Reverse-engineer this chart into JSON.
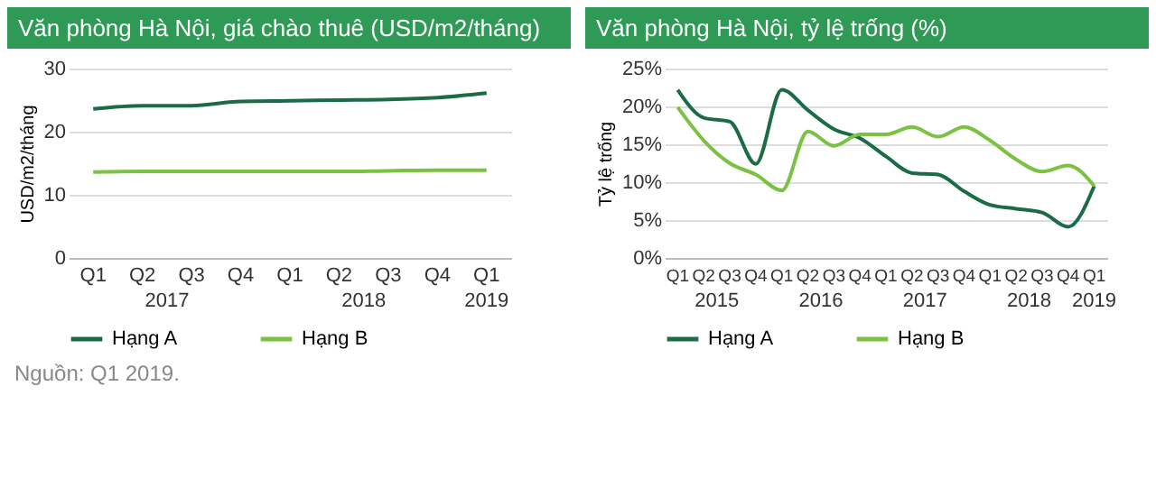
{
  "chart_data": [
    {
      "type": "line",
      "title": "Văn phòng Hà Nội, giá chào thuê (USD/m2/tháng)",
      "ylabel": "USD/m2/tháng",
      "categories": [
        "Q1",
        "Q2",
        "Q3",
        "Q4",
        "Q1",
        "Q2",
        "Q3",
        "Q4",
        "Q1"
      ],
      "series": [
        {
          "name": "Hạng A",
          "color": "#1b6b47",
          "values": [
            23.6,
            24.1,
            24.1,
            24.8,
            24.9,
            25.0,
            25.1,
            25.4,
            26.1
          ]
        },
        {
          "name": "Hạng B",
          "color": "#7cc242",
          "values": [
            13.6,
            13.7,
            13.7,
            13.7,
            13.7,
            13.7,
            13.8,
            13.9,
            13.9
          ]
        }
      ],
      "ylim": [
        0,
        30
      ],
      "yticks": [
        0,
        10,
        20,
        30
      ],
      "grid": "y",
      "legend": "bottom",
      "annotations": [
        "2017",
        "2018",
        "2019",
        "Nguồn: Q1 2019."
      ]
    },
    {
      "type": "line",
      "title": "Văn phòng Hà Nội, tỷ lệ trống (%)",
      "ylabel": "Tỷ lệ trống",
      "categories": [
        "Q1",
        "Q2",
        "Q3",
        "Q4",
        "Q1",
        "Q2",
        "Q3",
        "Q4",
        "Q1",
        "Q2",
        "Q3",
        "Q4",
        "Q1",
        "Q2",
        "Q3",
        "Q4",
        "Q1"
      ],
      "series": [
        {
          "name": "Hạng A",
          "color": "#1b6b47",
          "values": [
            22.2,
            18.5,
            18,
            12.4,
            22.2,
            19.5,
            17,
            15.8,
            13.4,
            11.2,
            11,
            8.8,
            7,
            6.5,
            6,
            4.1,
            9.5
          ]
        },
        {
          "name": "Hạng B",
          "color": "#7cc242",
          "values": [
            19.9,
            15.5,
            12.5,
            11,
            8.9,
            16.7,
            14.8,
            16.3,
            16.3,
            17.3,
            16,
            17.3,
            15.5,
            13,
            11.4,
            12.2,
            9.5
          ]
        }
      ],
      "ylim": [
        0,
        25
      ],
      "yticks": [
        {
          "value": 0,
          "label": "0%"
        },
        {
          "value": 5,
          "label": "5%"
        },
        {
          "value": 10,
          "label": "10%"
        },
        {
          "value": 15,
          "label": "15%"
        },
        {
          "value": 20,
          "label": "20%"
        },
        {
          "value": 25,
          "label": "25%"
        }
      ],
      "grid": "y",
      "legend": "bottom",
      "annotations": [
        "2015",
        "2016",
        "2017",
        "2018",
        "2019"
      ]
    }
  ]
}
